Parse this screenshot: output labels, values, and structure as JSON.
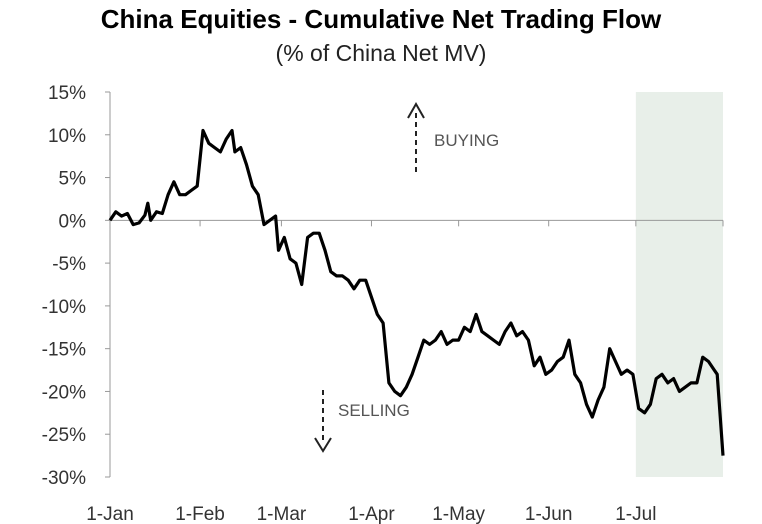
{
  "chart_data": {
    "type": "line",
    "title": "China Equities - Cumulative Net Trading Flow",
    "subtitle": "(% of China Net MV)",
    "xlabel": "",
    "ylabel": "",
    "x_ticks": [
      "1-Jan",
      "1-Feb",
      "1-Mar",
      "1-Apr",
      "1-May",
      "1-Jun",
      "1-Jul"
    ],
    "y_ticks": [
      "15%",
      "10%",
      "5%",
      "0%",
      "-5%",
      "-10%",
      "-15%",
      "-20%",
      "-25%",
      "-30%"
    ],
    "ylim": [
      -30,
      15
    ],
    "grid": false,
    "shaded_region": {
      "from": "2021-07-01",
      "to": "2021-07-31",
      "color": "#e8efe9"
    },
    "annotations": [
      {
        "text": "BUYING",
        "arrow": "up"
      },
      {
        "text": "SELLING",
        "arrow": "down"
      }
    ],
    "series": [
      {
        "color": "#000000",
        "points": [
          [
            "2021-01-01",
            0
          ],
          [
            "2021-01-03",
            1
          ],
          [
            "2021-01-05",
            0.5
          ],
          [
            "2021-01-07",
            0.8
          ],
          [
            "2021-01-09",
            -0.5
          ],
          [
            "2021-01-11",
            -0.3
          ],
          [
            "2021-01-13",
            0.6
          ],
          [
            "2021-01-14",
            2
          ],
          [
            "2021-01-15",
            0
          ],
          [
            "2021-01-17",
            1
          ],
          [
            "2021-01-19",
            0.8
          ],
          [
            "2021-01-21",
            3
          ],
          [
            "2021-01-23",
            4.5
          ],
          [
            "2021-01-25",
            3
          ],
          [
            "2021-01-27",
            3
          ],
          [
            "2021-01-29",
            3.5
          ],
          [
            "2021-01-31",
            4
          ],
          [
            "2021-02-02",
            10.5
          ],
          [
            "2021-02-04",
            9
          ],
          [
            "2021-02-06",
            8.5
          ],
          [
            "2021-02-08",
            8
          ],
          [
            "2021-02-10",
            9.5
          ],
          [
            "2021-02-12",
            10.5
          ],
          [
            "2021-02-13",
            8
          ],
          [
            "2021-02-15",
            8.5
          ],
          [
            "2021-02-17",
            6.5
          ],
          [
            "2021-02-19",
            4
          ],
          [
            "2021-02-21",
            3
          ],
          [
            "2021-02-23",
            -0.5
          ],
          [
            "2021-02-25",
            0
          ],
          [
            "2021-02-27",
            0.5
          ],
          [
            "2021-02-28",
            -3.5
          ],
          [
            "2021-03-02",
            -2
          ],
          [
            "2021-03-04",
            -4.5
          ],
          [
            "2021-03-06",
            -5
          ],
          [
            "2021-03-08",
            -7.5
          ],
          [
            "2021-03-10",
            -2
          ],
          [
            "2021-03-12",
            -1.5
          ],
          [
            "2021-03-14",
            -1.5
          ],
          [
            "2021-03-16",
            -3.5
          ],
          [
            "2021-03-18",
            -6
          ],
          [
            "2021-03-20",
            -6.5
          ],
          [
            "2021-03-22",
            -6.5
          ],
          [
            "2021-03-24",
            -7
          ],
          [
            "2021-03-26",
            -8
          ],
          [
            "2021-03-28",
            -7
          ],
          [
            "2021-03-30",
            -7
          ],
          [
            "2021-04-01",
            -9
          ],
          [
            "2021-04-03",
            -11
          ],
          [
            "2021-04-05",
            -12
          ],
          [
            "2021-04-07",
            -19
          ],
          [
            "2021-04-09",
            -20
          ],
          [
            "2021-04-11",
            -20.5
          ],
          [
            "2021-04-13",
            -19.5
          ],
          [
            "2021-04-15",
            -18
          ],
          [
            "2021-04-17",
            -16
          ],
          [
            "2021-04-19",
            -14
          ],
          [
            "2021-04-21",
            -14.5
          ],
          [
            "2021-04-23",
            -14
          ],
          [
            "2021-04-25",
            -13
          ],
          [
            "2021-04-27",
            -14.5
          ],
          [
            "2021-04-29",
            -14
          ],
          [
            "2021-05-01",
            -14
          ],
          [
            "2021-05-03",
            -12.5
          ],
          [
            "2021-05-05",
            -13
          ],
          [
            "2021-05-07",
            -11
          ],
          [
            "2021-05-09",
            -13
          ],
          [
            "2021-05-11",
            -13.5
          ],
          [
            "2021-05-13",
            -14
          ],
          [
            "2021-05-15",
            -14.5
          ],
          [
            "2021-05-17",
            -13
          ],
          [
            "2021-05-19",
            -12
          ],
          [
            "2021-05-21",
            -13.5
          ],
          [
            "2021-05-23",
            -13
          ],
          [
            "2021-05-25",
            -14
          ],
          [
            "2021-05-27",
            -17
          ],
          [
            "2021-05-29",
            -16
          ],
          [
            "2021-05-31",
            -18
          ],
          [
            "2021-06-02",
            -17.5
          ],
          [
            "2021-06-04",
            -16.5
          ],
          [
            "2021-06-06",
            -16
          ],
          [
            "2021-06-08",
            -14
          ],
          [
            "2021-06-10",
            -18
          ],
          [
            "2021-06-12",
            -19
          ],
          [
            "2021-06-14",
            -21.5
          ],
          [
            "2021-06-16",
            -23
          ],
          [
            "2021-06-18",
            -21
          ],
          [
            "2021-06-20",
            -19.5
          ],
          [
            "2021-06-22",
            -15
          ],
          [
            "2021-06-24",
            -16.5
          ],
          [
            "2021-06-26",
            -18
          ],
          [
            "2021-06-28",
            -17.5
          ],
          [
            "2021-06-30",
            -18
          ],
          [
            "2021-07-02",
            -22
          ],
          [
            "2021-07-04",
            -22.5
          ],
          [
            "2021-07-06",
            -21.5
          ],
          [
            "2021-07-08",
            -18.5
          ],
          [
            "2021-07-10",
            -18
          ],
          [
            "2021-07-12",
            -19
          ],
          [
            "2021-07-14",
            -18.5
          ],
          [
            "2021-07-16",
            -20
          ],
          [
            "2021-07-18",
            -19.5
          ],
          [
            "2021-07-20",
            -19
          ],
          [
            "2021-07-22",
            -19
          ],
          [
            "2021-07-24",
            -16
          ],
          [
            "2021-07-26",
            -16.5
          ],
          [
            "2021-07-28",
            -17.5
          ],
          [
            "2021-07-29",
            -18
          ],
          [
            "2021-07-31",
            -27.5
          ]
        ]
      }
    ]
  }
}
